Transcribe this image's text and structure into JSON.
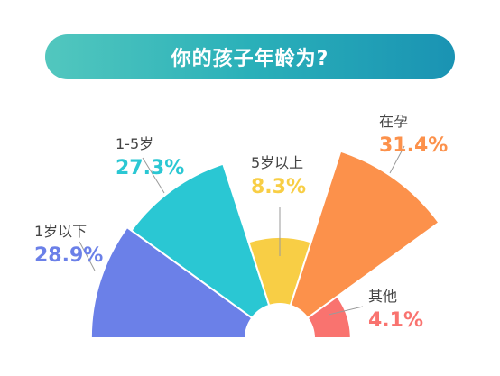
{
  "chart_data": {
    "type": "pie",
    "variant": "rose-semicircle",
    "title": "你的孩子年龄为?",
    "slices": [
      {
        "label": "1岁以下",
        "value": 28.9,
        "value_label": "28.9%",
        "color": "#6b80e8"
      },
      {
        "label": "1-5岁",
        "value": 27.3,
        "value_label": "27.3%",
        "color": "#2ac7d3"
      },
      {
        "label": "5岁以上",
        "value": 8.3,
        "value_label": "8.3%",
        "color": "#f8ce45"
      },
      {
        "label": "在孕",
        "value": 31.4,
        "value_label": "31.4%",
        "color": "#fc914b"
      },
      {
        "label": "其他",
        "value": 4.1,
        "value_label": "4.1%",
        "color": "#f9736f"
      }
    ]
  }
}
